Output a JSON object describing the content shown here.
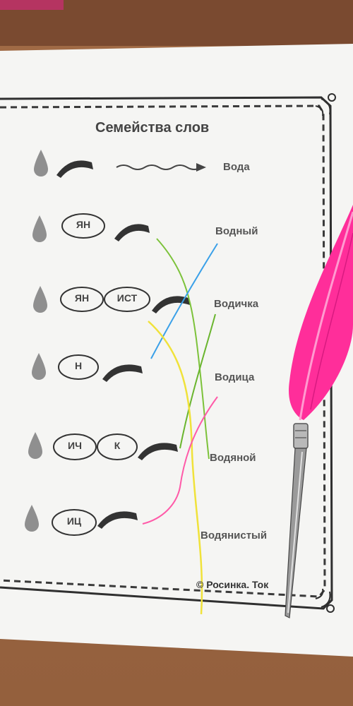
{
  "worksheet": {
    "title": "Семейства слов",
    "words": [
      "Вода",
      "Водный",
      "Водичка",
      "Водица",
      "Водяной",
      "Водянистый"
    ],
    "suffixes": {
      "row1": [
        "ЯН"
      ],
      "row2": [
        "ЯН",
        "ИСТ"
      ],
      "row3": [
        "Н"
      ],
      "row4": [
        "ИЧ",
        "К"
      ],
      "row5": [
        "ИЦ"
      ]
    },
    "copyright": "© Росинка. Ток"
  },
  "colors": {
    "paper": "#f4f4f2",
    "desk": "#94603d",
    "border": "#333333",
    "drop": "#8f8f8f",
    "root_arc": "#333333",
    "feather": "#ff2e9a",
    "line_green": "#7cc23a",
    "line_blue": "#3aa0e8",
    "line_yellow": "#f0e23a",
    "line_pink": "#ff5aa8"
  }
}
